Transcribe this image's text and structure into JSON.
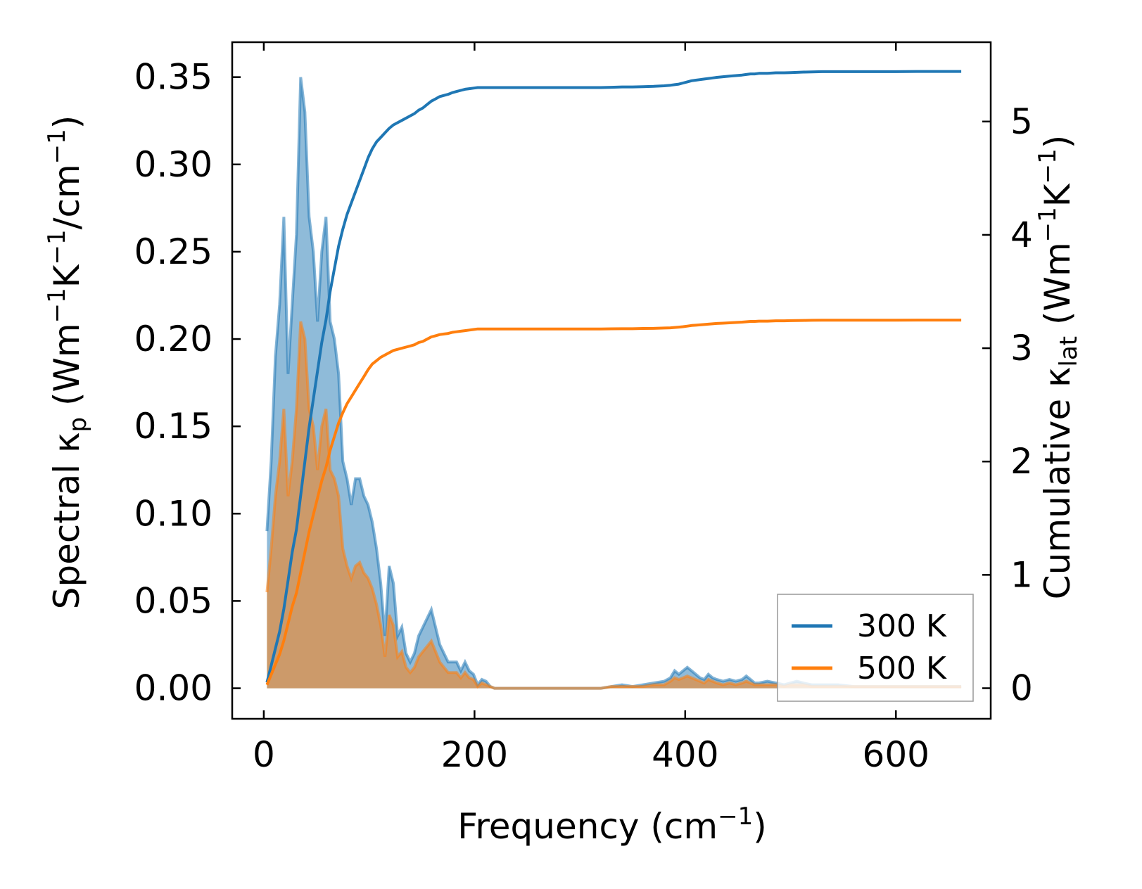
{
  "chart_data": {
    "type": "line",
    "title": "",
    "xlabel": "Frequency (cm",
    "xlabel_sup": "−1",
    "xlabel_end": ")",
    "xlim": [
      -30,
      690
    ],
    "xticks": [
      0,
      200,
      400,
      600
    ],
    "xtick_labels": [
      "0",
      "200",
      "400",
      "600"
    ],
    "left_axis": {
      "label_parts": [
        "Spectral κ",
        "p",
        " (Wm",
        "−1",
        "K",
        "−1",
        "/cm",
        "−1",
        ")"
      ],
      "ylim": [
        -0.0175,
        0.37
      ],
      "ticks": [
        0.0,
        0.05,
        0.1,
        0.15,
        0.2,
        0.25,
        0.3,
        0.35
      ],
      "tick_labels": [
        "0.00",
        "0.05",
        "0.10",
        "0.15",
        "0.20",
        "0.25",
        "0.30",
        "0.35"
      ]
    },
    "right_axis": {
      "label_parts": [
        "Cumulative κ",
        "lat",
        " (Wm",
        "−1",
        "K",
        "−1",
        ")"
      ],
      "ylim": [
        -0.27,
        5.7
      ],
      "ticks": [
        0,
        1,
        2,
        3,
        4,
        5
      ],
      "tick_labels": [
        "0",
        "1",
        "2",
        "3",
        "4",
        "5"
      ]
    },
    "spectral_x": [
      3,
      7,
      11,
      15,
      19,
      23,
      27,
      31,
      35,
      39,
      43,
      47,
      51,
      55,
      59,
      63,
      67,
      71,
      75,
      79,
      83,
      87,
      91,
      95,
      99,
      103,
      107,
      111,
      115,
      119,
      123,
      127,
      131,
      135,
      139,
      143,
      147,
      151,
      155,
      159,
      163,
      167,
      171,
      175,
      179,
      183,
      187,
      191,
      195,
      199,
      203,
      207,
      211,
      215,
      219,
      225,
      240,
      260,
      280,
      300,
      320,
      330,
      340,
      350,
      360,
      370,
      380,
      386,
      390,
      394,
      398,
      402,
      406,
      410,
      414,
      418,
      422,
      426,
      430,
      436,
      442,
      448,
      454,
      458,
      462,
      466,
      470,
      478,
      486,
      494,
      500,
      506,
      512,
      520,
      530,
      545,
      560,
      580,
      600,
      620,
      640,
      662
    ],
    "series": [
      {
        "name": "300 K",
        "color": "#1f77b4",
        "fill": "#1f77b4",
        "spectral": [
          0.09,
          0.13,
          0.19,
          0.22,
          0.27,
          0.18,
          0.22,
          0.26,
          0.35,
          0.33,
          0.27,
          0.25,
          0.21,
          0.25,
          0.27,
          0.21,
          0.2,
          0.18,
          0.13,
          0.12,
          0.105,
          0.12,
          0.12,
          0.11,
          0.105,
          0.095,
          0.08,
          0.06,
          0.03,
          0.07,
          0.06,
          0.03,
          0.035,
          0.02,
          0.015,
          0.02,
          0.03,
          0.035,
          0.04,
          0.045,
          0.035,
          0.025,
          0.02,
          0.015,
          0.015,
          0.015,
          0.01,
          0.015,
          0.01,
          0.008,
          0.002,
          0.005,
          0.004,
          0.001,
          0.0,
          0.0,
          0.0,
          0.0,
          0.0,
          0.0,
          0.0,
          0.001,
          0.002,
          0.001,
          0.002,
          0.003,
          0.004,
          0.006,
          0.01,
          0.008,
          0.01,
          0.012,
          0.01,
          0.008,
          0.006,
          0.005,
          0.008,
          0.006,
          0.005,
          0.004,
          0.005,
          0.004,
          0.005,
          0.007,
          0.005,
          0.003,
          0.003,
          0.004,
          0.003,
          0.002,
          0.003,
          0.004,
          0.003,
          0.002,
          0.002,
          0.002,
          0.001,
          0.001,
          0.001,
          0.001,
          0.001,
          0.001
        ],
        "cumulative": [
          0.05,
          0.2,
          0.35,
          0.5,
          0.7,
          0.95,
          1.2,
          1.4,
          1.7,
          2.0,
          2.3,
          2.55,
          2.8,
          3.05,
          3.25,
          3.5,
          3.7,
          3.9,
          4.05,
          4.18,
          4.28,
          4.38,
          4.48,
          4.58,
          4.68,
          4.76,
          4.82,
          4.86,
          4.9,
          4.94,
          4.97,
          4.99,
          5.01,
          5.03,
          5.05,
          5.07,
          5.1,
          5.12,
          5.15,
          5.18,
          5.2,
          5.22,
          5.23,
          5.24,
          5.255,
          5.265,
          5.275,
          5.285,
          5.29,
          5.295,
          5.3,
          5.3,
          5.3,
          5.3,
          5.3,
          5.3,
          5.3,
          5.3,
          5.3,
          5.3,
          5.3,
          5.302,
          5.305,
          5.305,
          5.308,
          5.31,
          5.315,
          5.32,
          5.325,
          5.33,
          5.34,
          5.35,
          5.36,
          5.365,
          5.37,
          5.375,
          5.38,
          5.385,
          5.39,
          5.395,
          5.4,
          5.405,
          5.41,
          5.415,
          5.42,
          5.42,
          5.425,
          5.425,
          5.43,
          5.43,
          5.432,
          5.434,
          5.436,
          5.438,
          5.44,
          5.44,
          5.44,
          5.44,
          5.44,
          5.442,
          5.442,
          5.442
        ]
      },
      {
        "name": "500 K",
        "color": "#ff7f0e",
        "fill": "#ff7f0e",
        "spectral": [
          0.055,
          0.08,
          0.11,
          0.13,
          0.16,
          0.11,
          0.13,
          0.16,
          0.21,
          0.2,
          0.16,
          0.15,
          0.125,
          0.15,
          0.16,
          0.125,
          0.12,
          0.11,
          0.08,
          0.07,
          0.063,
          0.07,
          0.072,
          0.066,
          0.063,
          0.057,
          0.048,
          0.036,
          0.018,
          0.042,
          0.036,
          0.018,
          0.021,
          0.012,
          0.009,
          0.012,
          0.018,
          0.021,
          0.024,
          0.027,
          0.021,
          0.015,
          0.012,
          0.009,
          0.009,
          0.009,
          0.006,
          0.009,
          0.006,
          0.005,
          0.001,
          0.003,
          0.002,
          0.001,
          0.0,
          0.0,
          0.0,
          0.0,
          0.0,
          0.0,
          0.0,
          0.001,
          0.001,
          0.001,
          0.001,
          0.002,
          0.002,
          0.004,
          0.006,
          0.005,
          0.006,
          0.007,
          0.006,
          0.005,
          0.004,
          0.003,
          0.005,
          0.004,
          0.003,
          0.002,
          0.003,
          0.002,
          0.003,
          0.004,
          0.003,
          0.002,
          0.002,
          0.002,
          0.002,
          0.001,
          0.002,
          0.002,
          0.002,
          0.001,
          0.001,
          0.001,
          0.001,
          0.001,
          0.001,
          0.001,
          0.001,
          0.001
        ],
        "cumulative": [
          0.03,
          0.12,
          0.21,
          0.3,
          0.42,
          0.57,
          0.72,
          0.84,
          1.02,
          1.2,
          1.38,
          1.53,
          1.68,
          1.83,
          1.95,
          2.1,
          2.22,
          2.34,
          2.43,
          2.51,
          2.57,
          2.63,
          2.69,
          2.75,
          2.81,
          2.86,
          2.89,
          2.92,
          2.94,
          2.96,
          2.98,
          2.99,
          3.0,
          3.01,
          3.02,
          3.03,
          3.05,
          3.06,
          3.08,
          3.1,
          3.11,
          3.12,
          3.125,
          3.13,
          3.14,
          3.145,
          3.15,
          3.155,
          3.16,
          3.165,
          3.17,
          3.17,
          3.17,
          3.17,
          3.17,
          3.17,
          3.17,
          3.17,
          3.17,
          3.17,
          3.17,
          3.171,
          3.172,
          3.172,
          3.174,
          3.175,
          3.178,
          3.18,
          3.183,
          3.186,
          3.19,
          3.195,
          3.2,
          3.203,
          3.206,
          3.209,
          3.212,
          3.215,
          3.218,
          3.221,
          3.224,
          3.227,
          3.23,
          3.233,
          3.236,
          3.236,
          3.239,
          3.239,
          3.242,
          3.242,
          3.243,
          3.244,
          3.245,
          3.246,
          3.247,
          3.247,
          3.247,
          3.247,
          3.247,
          3.248,
          3.248,
          3.248
        ]
      }
    ],
    "legend": {
      "placement": "lower-right",
      "entries": [
        "300 K",
        "500 K"
      ]
    }
  }
}
